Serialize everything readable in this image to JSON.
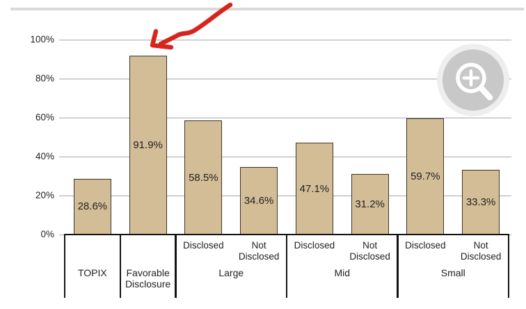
{
  "chart_data": {
    "type": "bar",
    "yticks": [
      0,
      20,
      40,
      60,
      80,
      100
    ],
    "ytick_labels": [
      "0%",
      "20%",
      "40%",
      "60%",
      "80%",
      "100%"
    ],
    "ylim": [
      0,
      100
    ],
    "grid": true,
    "bar_fill": "#d3bd97",
    "bar_border": "#3d3426",
    "grid_color": "#a8a8a8",
    "axis_color": "#121212",
    "text_color": "#242120",
    "groups": [
      {
        "label": "TOPIX",
        "bars": [
          {
            "sublabel": "",
            "value": 28.6,
            "display": "28.6%"
          }
        ]
      },
      {
        "label": "Favorable Disclosure",
        "bars": [
          {
            "sublabel": "",
            "value": 91.9,
            "display": "91.9%"
          }
        ]
      },
      {
        "label": "Large",
        "bars": [
          {
            "sublabel": "Disclosed",
            "value": 58.5,
            "display": "58.5%"
          },
          {
            "sublabel": "Not Disclosed",
            "value": 34.6,
            "display": "34.6%"
          }
        ]
      },
      {
        "label": "Mid",
        "bars": [
          {
            "sublabel": "Disclosed",
            "value": 47.1,
            "display": "47.1%"
          },
          {
            "sublabel": "Not Disclosed",
            "value": 31.2,
            "display": "31.2%"
          }
        ]
      },
      {
        "label": "Small",
        "bars": [
          {
            "sublabel": "Disclosed",
            "value": 59.7,
            "display": "59.7%"
          },
          {
            "sublabel": "Not Disclosed",
            "value": 33.3,
            "display": "33.3%"
          }
        ]
      }
    ]
  },
  "annotations": {
    "arrow": {
      "color": "#d7251d",
      "points_at_display": "91.9%"
    }
  },
  "decor": {
    "top_rule_color": "#d9d9d9"
  },
  "overlay": {
    "zoom_button": {
      "icon": "zoom-in-magnifier-plus",
      "outer_ring_fill": "#eeeeee",
      "circle_fill": "#c8c8c8",
      "glass_color": "#ffffff"
    }
  }
}
